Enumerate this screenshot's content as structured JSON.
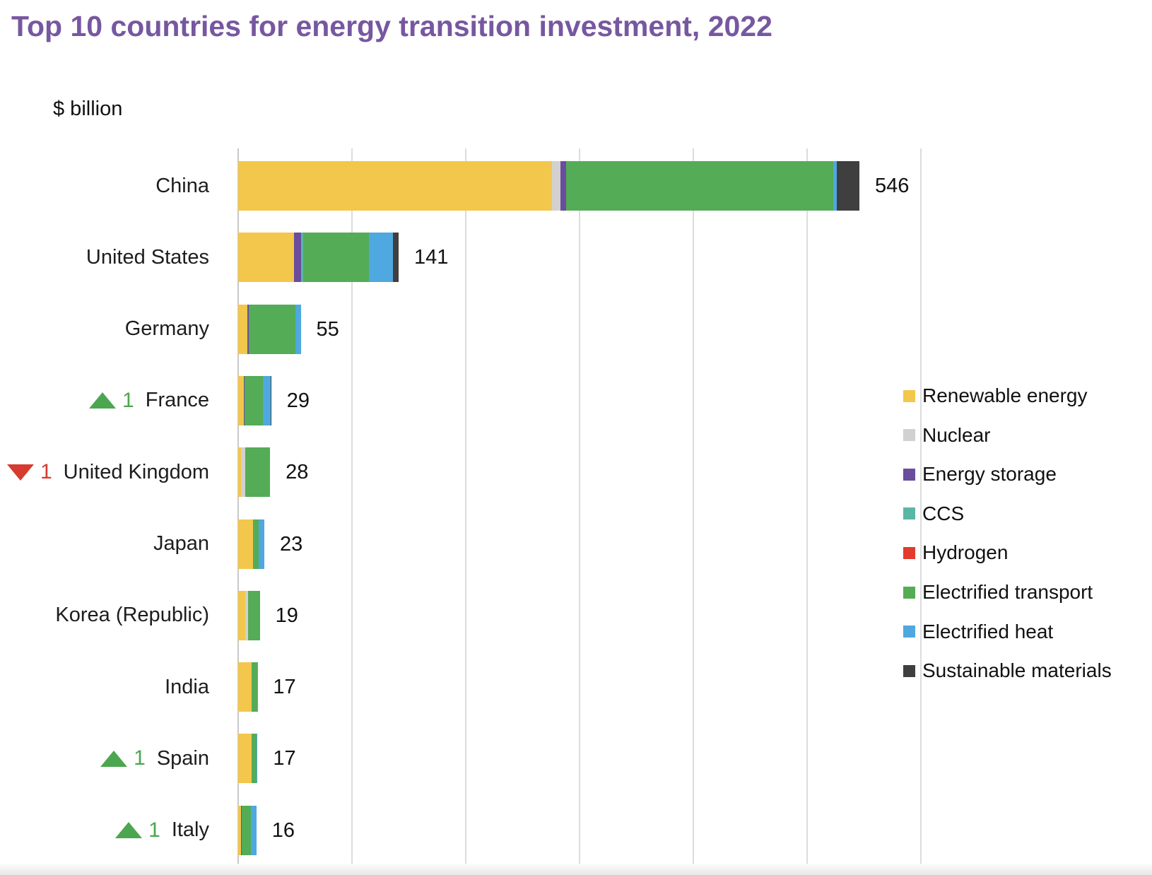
{
  "title": "Top 10 countries for energy transition investment, 2022",
  "title_color": "#7757A0",
  "unit_label": "$ billion",
  "rank_indicator": {
    "up_color": "#4CA64F",
    "down_color": "#D63B2F"
  },
  "grid_color": "#DCDCDC",
  "axis_color": "#C9C9C9",
  "chart_data": {
    "type": "bar",
    "orientation": "horizontal",
    "stacked": true,
    "title": "Top 10 countries for energy transition investment, 2022",
    "xlabel": "$ billion",
    "xlim": [
      0,
      600
    ],
    "gridline_step": 100,
    "grid": true,
    "legend_position": "right",
    "series": [
      {
        "name": "Renewable energy",
        "color": "#F2C74B"
      },
      {
        "name": "Nuclear",
        "color": "#D2D1CF"
      },
      {
        "name": "Energy storage",
        "color": "#6B4D9E"
      },
      {
        "name": "CCS",
        "color": "#5BB6A5"
      },
      {
        "name": "Hydrogen",
        "color": "#E23A2D"
      },
      {
        "name": "Electrified transport",
        "color": "#54AC57"
      },
      {
        "name": "Electrified heat",
        "color": "#4FA8DF"
      },
      {
        "name": "Sustainable materials",
        "color": "#3F3F3F"
      }
    ],
    "rows": [
      {
        "country": "China",
        "total": 546,
        "rank_change": 0,
        "values": [
          276,
          7,
          5,
          0,
          0,
          235,
          3,
          20
        ]
      },
      {
        "country": "United States",
        "total": 141,
        "rank_change": 0,
        "values": [
          49,
          0,
          6,
          2,
          0,
          58,
          21,
          5
        ]
      },
      {
        "country": "Germany",
        "total": 55,
        "rank_change": 0,
        "values": [
          8,
          0,
          1.5,
          0,
          0,
          41,
          4.5,
          0
        ]
      },
      {
        "country": "France",
        "total": 29,
        "rank_change": 1,
        "values": [
          5,
          0,
          0.5,
          0,
          0,
          16,
          7,
          0.5
        ]
      },
      {
        "country": "United Kingdom",
        "total": 28,
        "rank_change": -1,
        "values": [
          2.5,
          3.5,
          0,
          0,
          0,
          22,
          0,
          0
        ]
      },
      {
        "country": "Japan",
        "total": 23,
        "rank_change": 0,
        "values": [
          13,
          0,
          0,
          0,
          0,
          5,
          5,
          0
        ]
      },
      {
        "country": "Korea (Republic)",
        "total": 19,
        "rank_change": 0,
        "values": [
          6,
          2.5,
          0,
          0,
          0,
          10.5,
          0,
          0
        ]
      },
      {
        "country": "India",
        "total": 17,
        "rank_change": 0,
        "values": [
          11.5,
          0,
          0,
          0,
          0,
          5,
          0.5,
          0
        ]
      },
      {
        "country": "Spain",
        "total": 17,
        "rank_change": 1,
        "values": [
          11.5,
          0,
          0,
          0,
          0,
          4.5,
          1,
          0
        ]
      },
      {
        "country": "Italy",
        "total": 16,
        "rank_change": 1,
        "values": [
          2.5,
          0,
          0.5,
          0,
          0,
          8.5,
          4.5,
          0
        ]
      }
    ]
  }
}
